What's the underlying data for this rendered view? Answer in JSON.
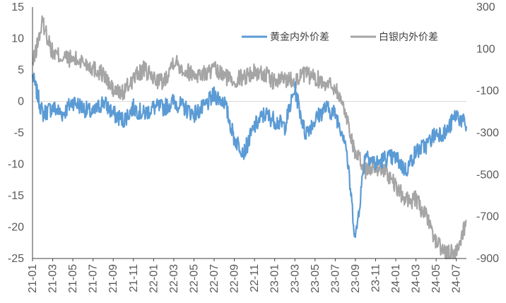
{
  "chart_data": {
    "type": "line",
    "title": "",
    "xlabel": "",
    "ylabel": "",
    "x_tick_labels": [
      "21-01",
      "21-03",
      "21-05",
      "21-07",
      "21-09",
      "21-11",
      "22-01",
      "22-03",
      "22-05",
      "22-07",
      "22-09",
      "22-11",
      "23-01",
      "23-03",
      "23-05",
      "23-07",
      "23-09",
      "23-11",
      "24-01",
      "24-03",
      "24-05",
      "24-07"
    ],
    "x_range": [
      "2021-01",
      "2024-08"
    ],
    "y_left": {
      "min": -25,
      "max": 15,
      "ticks": [
        "15",
        "10",
        "5",
        "0",
        "-5",
        "-10",
        "-15",
        "-20",
        "-25"
      ]
    },
    "y_right": {
      "min": -900,
      "max": 300,
      "ticks": [
        "300",
        "100",
        "-100",
        "-300",
        "-500",
        "-700",
        "-900"
      ]
    },
    "grid": false,
    "legend_position": "top-right",
    "series": [
      {
        "name": "黄金内外价差",
        "axis": "left",
        "color": "#5b9bd5",
        "x": [
          "2021-01",
          "2021-02",
          "2021-03",
          "2021-04",
          "2021-05",
          "2021-06",
          "2021-07",
          "2021-08",
          "2021-09",
          "2021-10",
          "2021-11",
          "2021-12",
          "2022-01",
          "2022-02",
          "2022-03",
          "2022-04",
          "2022-05",
          "2022-06",
          "2022-07",
          "2022-08",
          "2022-09",
          "2022-10",
          "2022-11",
          "2022-12",
          "2023-01",
          "2023-02",
          "2023-03",
          "2023-04",
          "2023-05",
          "2023-06",
          "2023-07",
          "2023-08",
          "2023-09",
          "2023-10",
          "2023-11",
          "2023-12",
          "2024-01",
          "2024-02",
          "2024-03",
          "2024-04",
          "2024-05",
          "2024-06",
          "2024-07",
          "2024-08"
        ],
        "values": [
          4,
          -2,
          -1,
          -2,
          0,
          -1,
          -2,
          0,
          -2,
          -3,
          -1,
          -2,
          -1,
          -1,
          0,
          -1,
          -2,
          -1,
          1,
          0,
          -6,
          -8,
          -4,
          -2,
          -3,
          -4,
          2,
          -5,
          -3,
          -1,
          -2,
          -6,
          -22,
          -8,
          -10,
          -9,
          -9,
          -11,
          -8,
          -7,
          -5,
          -5,
          -2,
          -4
        ]
      },
      {
        "name": "白银内外价差",
        "axis": "right",
        "color": "#a5a5a5",
        "x": [
          "2021-01",
          "2021-02",
          "2021-03",
          "2021-04",
          "2021-05",
          "2021-06",
          "2021-07",
          "2021-08",
          "2021-09",
          "2021-10",
          "2021-11",
          "2021-12",
          "2022-01",
          "2022-02",
          "2022-03",
          "2022-04",
          "2022-05",
          "2022-06",
          "2022-07",
          "2022-08",
          "2022-09",
          "2022-10",
          "2022-11",
          "2022-12",
          "2023-01",
          "2023-02",
          "2023-03",
          "2023-04",
          "2023-05",
          "2023-06",
          "2023-07",
          "2023-08",
          "2023-09",
          "2023-10",
          "2023-11",
          "2023-12",
          "2024-01",
          "2024-02",
          "2024-03",
          "2024-04",
          "2024-05",
          "2024-06",
          "2024-07",
          "2024-08"
        ],
        "values": [
          20,
          230,
          80,
          60,
          50,
          40,
          10,
          -20,
          -100,
          -110,
          -40,
          0,
          -40,
          -60,
          50,
          0,
          -20,
          -20,
          0,
          -30,
          -50,
          -30,
          -10,
          -20,
          -60,
          -40,
          -50,
          -20,
          -40,
          -60,
          -80,
          -200,
          -400,
          -480,
          -460,
          -480,
          -560,
          -620,
          -620,
          -700,
          -820,
          -880,
          -870,
          -720
        ]
      }
    ]
  }
}
